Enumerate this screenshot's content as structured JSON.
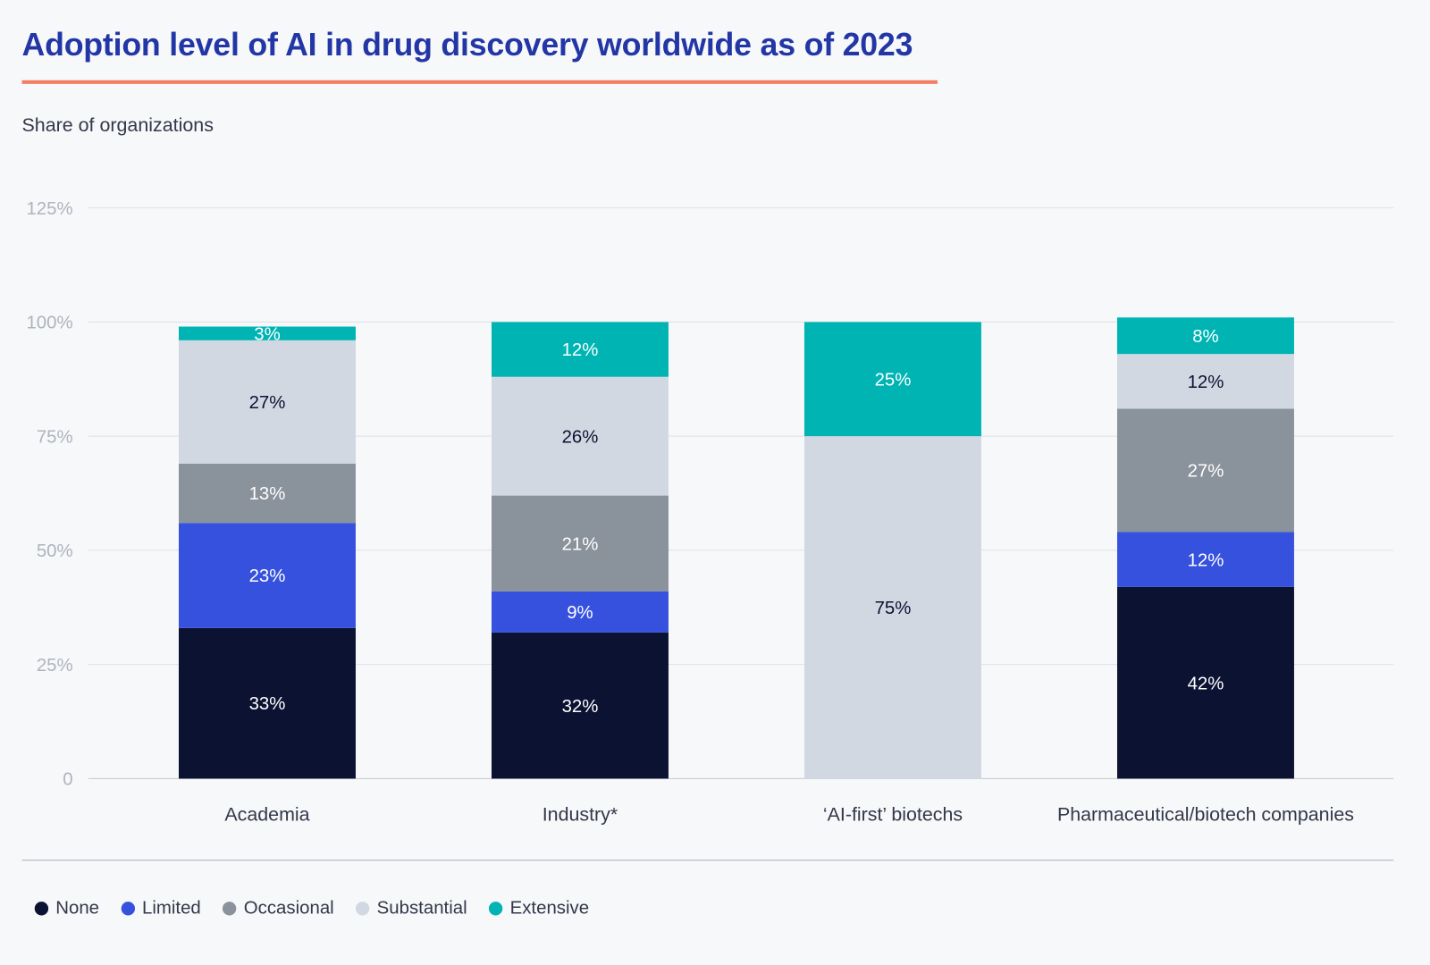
{
  "title": "Adoption level of AI in drug discovery worldwide as of 2023",
  "subtitle": "Share of organizations",
  "chart_data": {
    "type": "bar",
    "stacked": true,
    "title": "Adoption level of AI in drug discovery worldwide as of 2023",
    "ylabel": "Share of organizations",
    "xlabel": "",
    "ylim": [
      0,
      125
    ],
    "yticks": [
      0,
      25,
      50,
      75,
      100,
      125
    ],
    "ytick_labels": [
      "0",
      "25%",
      "50%",
      "75%",
      "100%",
      "125%"
    ],
    "grid": true,
    "legend_position": "bottom-left",
    "categories": [
      "Academia",
      "Industry*",
      "‘AI-first’ biotechs",
      "Pharmaceutical/biotech companies"
    ],
    "series": [
      {
        "name": "None",
        "color": "#0c1232",
        "label_color": "#ffffff",
        "values": [
          33,
          32,
          0,
          42
        ]
      },
      {
        "name": "Limited",
        "color": "#3651de",
        "label_color": "#ffffff",
        "values": [
          23,
          9,
          0,
          12
        ]
      },
      {
        "name": "Occasional",
        "color": "#8a929c",
        "label_color": "#ffffff",
        "values": [
          13,
          21,
          0,
          27
        ]
      },
      {
        "name": "Substantial",
        "color": "#d2d8e2",
        "label_color": "#0c1232",
        "values": [
          27,
          26,
          75,
          12
        ]
      },
      {
        "name": "Extensive",
        "color": "#00b4b4",
        "label_color": "#ffffff",
        "values": [
          3,
          12,
          25,
          8
        ]
      }
    ]
  }
}
